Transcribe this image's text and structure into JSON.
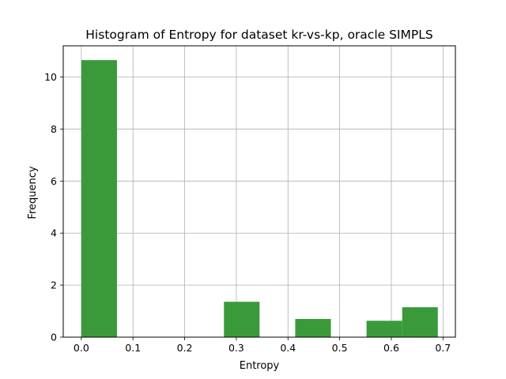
{
  "chart_data": {
    "type": "bar",
    "title": "Histogram of Entropy for dataset kr-vs-kp, oracle SIMPLS",
    "xlabel": "Entropy",
    "ylabel": "Frequency",
    "xlim": [
      -0.035,
      0.724
    ],
    "ylim": [
      0,
      11.2
    ],
    "grid": true,
    "bar_color": "#3a9a3a",
    "x_ticks": [
      {
        "value": 0.0,
        "label": "0.0"
      },
      {
        "value": 0.1,
        "label": "0.1"
      },
      {
        "value": 0.2,
        "label": "0.2"
      },
      {
        "value": 0.3,
        "label": "0.3"
      },
      {
        "value": 0.4,
        "label": "0.4"
      },
      {
        "value": 0.5,
        "label": "0.5"
      },
      {
        "value": 0.6,
        "label": "0.6"
      },
      {
        "value": 0.7,
        "label": "0.7"
      }
    ],
    "y_ticks": [
      {
        "value": 0,
        "label": "0"
      },
      {
        "value": 2,
        "label": "2"
      },
      {
        "value": 4,
        "label": "4"
      },
      {
        "value": 6,
        "label": "6"
      },
      {
        "value": 8,
        "label": "8"
      },
      {
        "value": 10,
        "label": "10"
      }
    ],
    "bins": [
      {
        "x0": 0.0,
        "x1": 0.069,
        "value": 10.65
      },
      {
        "x0": 0.069,
        "x1": 0.138,
        "value": 0
      },
      {
        "x0": 0.138,
        "x1": 0.207,
        "value": 0
      },
      {
        "x0": 0.207,
        "x1": 0.276,
        "value": 0
      },
      {
        "x0": 0.276,
        "x1": 0.345,
        "value": 1.36
      },
      {
        "x0": 0.345,
        "x1": 0.414,
        "value": 0
      },
      {
        "x0": 0.414,
        "x1": 0.483,
        "value": 0.7
      },
      {
        "x0": 0.483,
        "x1": 0.552,
        "value": 0
      },
      {
        "x0": 0.552,
        "x1": 0.621,
        "value": 0.63
      },
      {
        "x0": 0.621,
        "x1": 0.69,
        "value": 1.15
      }
    ]
  }
}
